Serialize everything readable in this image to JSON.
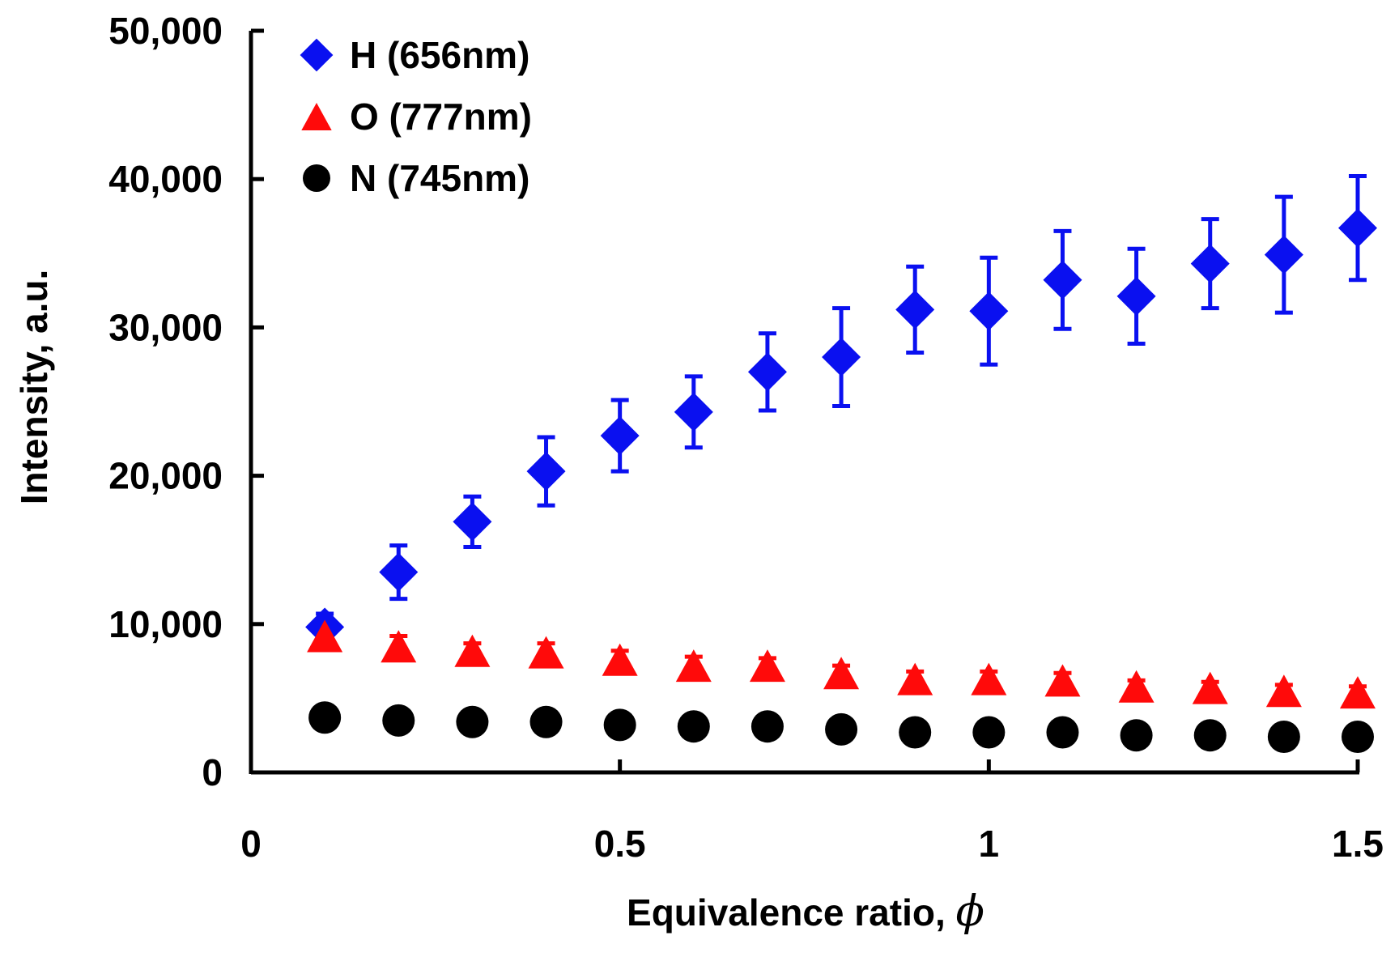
{
  "chart_data": {
    "type": "scatter",
    "title": "",
    "xlabel": "Equivalence ratio, ",
    "xlabel_symbol": "ϕ",
    "ylabel": "Intensity, a.u.",
    "xlim": [
      0,
      1.5
    ],
    "ylim": [
      0,
      50000
    ],
    "x_ticks": [
      0,
      0.5,
      1,
      1.5
    ],
    "x_tick_labels": [
      "0",
      "0.5",
      "1",
      "1.5"
    ],
    "y_ticks": [
      0,
      10000,
      20000,
      30000,
      40000,
      50000
    ],
    "y_tick_labels": [
      "0",
      "10,000",
      "20,000",
      "30,000",
      "40,000",
      "50,000"
    ],
    "grid": false,
    "legend_position": "top-left",
    "x": [
      0.1,
      0.2,
      0.3,
      0.4,
      0.5,
      0.6,
      0.7,
      0.8,
      0.9,
      1.0,
      1.1,
      1.2,
      1.3,
      1.4,
      1.5
    ],
    "series": [
      {
        "name": "H (656nm)",
        "marker": "diamond",
        "color": "#0a10f0",
        "values": [
          9800,
          13500,
          16900,
          20300,
          22700,
          24300,
          27000,
          28000,
          31200,
          31100,
          33200,
          32100,
          34300,
          34900,
          36700
        ],
        "errors": [
          900,
          1800,
          1700,
          2300,
          2400,
          2400,
          2600,
          3300,
          2900,
          3600,
          3300,
          3200,
          3000,
          3900,
          3500
        ]
      },
      {
        "name": "O (777nm)",
        "marker": "triangle",
        "color": "#ff0a0a",
        "values": [
          9200,
          8500,
          8200,
          8100,
          7600,
          7200,
          7200,
          6700,
          6300,
          6300,
          6200,
          5800,
          5700,
          5500,
          5400
        ],
        "errors": [
          700,
          700,
          500,
          600,
          600,
          600,
          500,
          500,
          500,
          500,
          500,
          400,
          400,
          400,
          400
        ]
      },
      {
        "name": "N (745nm)",
        "marker": "circle",
        "color": "#000000",
        "values": [
          3700,
          3500,
          3400,
          3400,
          3200,
          3100,
          3100,
          2900,
          2700,
          2700,
          2700,
          2500,
          2500,
          2400,
          2400
        ],
        "errors": [
          0,
          0,
          0,
          0,
          0,
          0,
          0,
          0,
          0,
          0,
          0,
          0,
          0,
          0,
          0
        ]
      }
    ]
  }
}
